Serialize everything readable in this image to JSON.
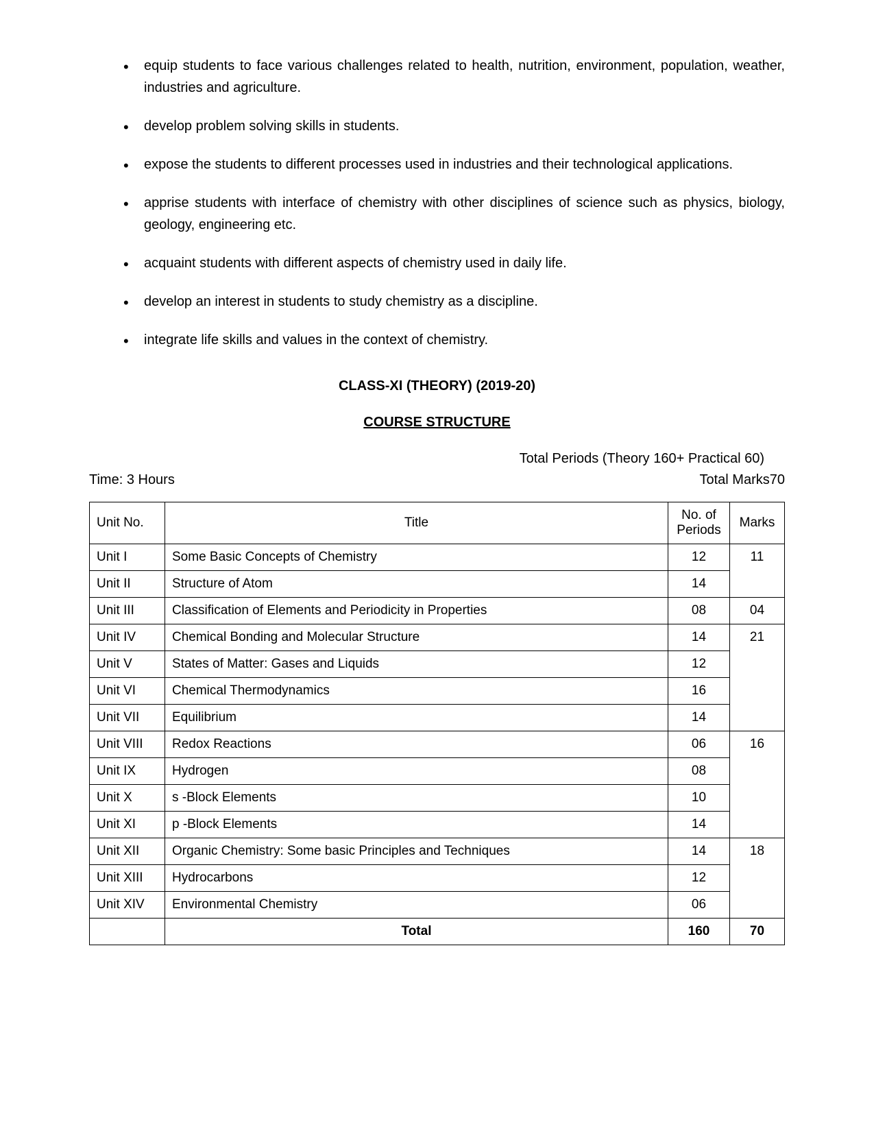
{
  "bullets": [
    "equip students to face various challenges related to health, nutrition, environment, population, weather, industries and agriculture.",
    "develop problem solving skills in students.",
    "expose the students to different processes used in industries and their technological applications.",
    "apprise students with interface of chemistry with other disciplines of science such as physics, biology, geology, engineering etc.",
    "acquaint students with different aspects of chemistry used in daily life.",
    "develop an interest in students to study chemistry as a discipline.",
    "integrate life skills and values in the context of chemistry."
  ],
  "heading1": "CLASS-XI (THEORY) (2019-20)",
  "heading2": "COURSE STRUCTURE",
  "periodsLabel": "Total Periods (Theory 160+ Practical 60)",
  "timeLabel": "Time: 3 Hours",
  "marksLabel": "Total  Marks70",
  "table": {
    "headers": {
      "unit": "Unit No.",
      "title": "Title",
      "periods": "No. of Periods",
      "marks": "Marks"
    },
    "rows": [
      {
        "unit": "Unit I",
        "title": "Some Basic Concepts of Chemistry",
        "periods": "12"
      },
      {
        "unit": "Unit II",
        "title": "Structure of Atom",
        "periods": "14"
      },
      {
        "unit": "Unit III",
        "title": "Classification of Elements and Periodicity in Properties",
        "periods": "08"
      },
      {
        "unit": "Unit IV",
        "title": "Chemical Bonding and Molecular Structure",
        "periods": "14"
      },
      {
        "unit": "Unit V",
        "title": "States of Matter: Gases and Liquids",
        "periods": "12"
      },
      {
        "unit": "Unit VI",
        "title": "Chemical Thermodynamics",
        "periods": "16"
      },
      {
        "unit": "Unit VII",
        "title": "Equilibrium",
        "periods": "14"
      },
      {
        "unit": "Unit VIII",
        "title": "Redox Reactions",
        "periods": "06"
      },
      {
        "unit": "Unit IX",
        "title": "Hydrogen",
        "periods": "08"
      },
      {
        "unit": "Unit X",
        "title": "s -Block Elements",
        "periods": "10"
      },
      {
        "unit": "Unit XI",
        "title": "p -Block Elements",
        "periods": "14"
      },
      {
        "unit": "Unit XII",
        "title": "Organic Chemistry: Some basic Principles and Techniques",
        "periods": "14"
      },
      {
        "unit": "Unit XIII",
        "title": "Hydrocarbons",
        "periods": "12"
      },
      {
        "unit": "Unit XIV",
        "title": "Environmental Chemistry",
        "periods": "06"
      }
    ],
    "marksGroups": [
      {
        "span": 2,
        "value": "11"
      },
      {
        "span": 1,
        "value": "04"
      },
      {
        "span": 4,
        "value": "21"
      },
      {
        "span": 4,
        "value": "16"
      },
      {
        "span": 3,
        "value": "18"
      }
    ],
    "totalLabel": "Total",
    "totalPeriods": "160",
    "totalMarks": "70"
  }
}
